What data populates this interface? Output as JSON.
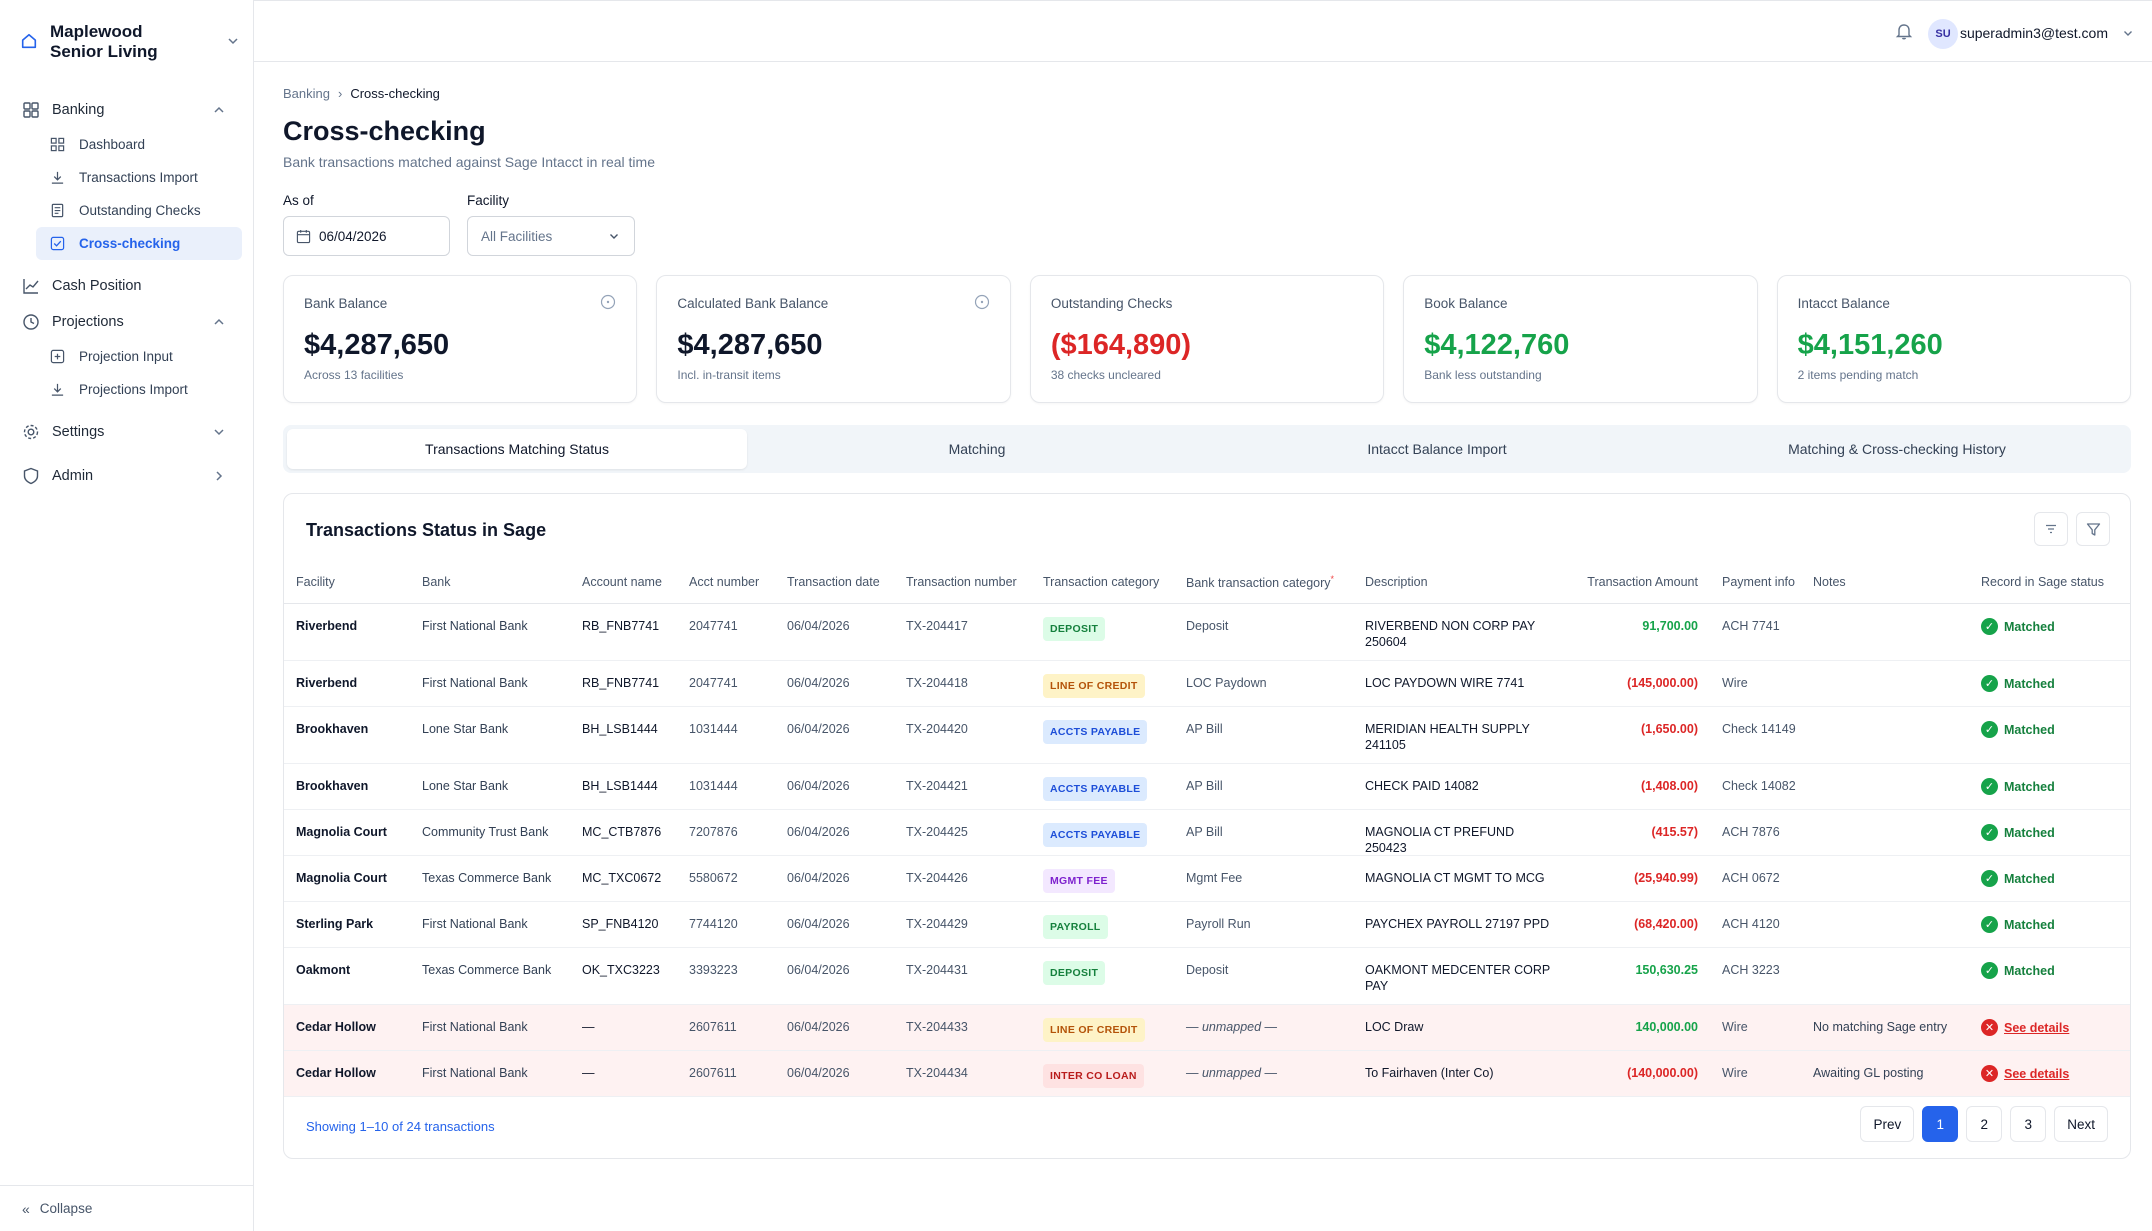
{
  "org": {
    "name": "Maplewood Senior Living"
  },
  "nav": {
    "banking": "Banking",
    "dashboard": "Dashboard",
    "transactions_import": "Transactions Import",
    "outstanding_checks": "Outstanding Checks",
    "cross_checking": "Cross-checking",
    "cash_position": "Cash Position",
    "projections": "Projections",
    "projection_input": "Projection Input",
    "projections_import": "Projections Import",
    "settings": "Settings",
    "admin": "Admin",
    "collapse": "Collapse"
  },
  "topbar": {
    "avatar": "SU",
    "user": "superadmin3@test.com"
  },
  "breadcrumb": {
    "parent": "Banking",
    "sep": "›",
    "current": "Cross-checking"
  },
  "page": {
    "title": "Cross-checking",
    "subtitle": "Bank transactions matched against Sage Intacct in real time"
  },
  "filters": {
    "as_of_label": "As of",
    "as_of_value": "06/04/2026",
    "facility_label": "Facility",
    "facility_value": "All Facilities"
  },
  "cards": [
    {
      "title": "Bank Balance",
      "value": "$4,287,650",
      "sub": "Across 13 facilities"
    },
    {
      "title": "Calculated Bank Balance",
      "value": "$4,287,650",
      "sub": "Incl. in-transit items"
    },
    {
      "title": "Outstanding Checks",
      "value": "($164,890)",
      "sub": "38 checks uncleared"
    },
    {
      "title": "Book Balance",
      "value": "$4,122,760",
      "sub": "Bank less outstanding"
    },
    {
      "title": "Intacct Balance",
      "value": "$4,151,260",
      "sub": "2 items pending match"
    }
  ],
  "tabs": [
    "Transactions Matching Status",
    "Matching",
    "Intacct Balance Import",
    "Matching & Cross-checking History"
  ],
  "table": {
    "title": "Transactions Status in Sage",
    "headers": {
      "facility": "Facility",
      "bank": "Bank",
      "account": "Account name",
      "acct_number": "Acct number",
      "date": "Transaction date",
      "txn": "Transaction number",
      "category": "Transaction category",
      "bank_category": "Bank transaction category",
      "bank_category_mark": "*",
      "description": "Description",
      "amount": "Transaction Amount",
      "payment": "Payment info",
      "notes": "Notes",
      "status": "Record in Sage status"
    },
    "rows": [
      {
        "facility": "Riverbend",
        "bank": "First National Bank",
        "account": "RB_FNB7741",
        "acct_number": "2047741",
        "date": "06/04/2026",
        "txn": "TX-204417",
        "category": "DEPOSIT",
        "bank_category": "Deposit",
        "description": "RIVERBEND NON CORP PAY 250604",
        "amount": "91,700.00",
        "payment": "ACH 7741",
        "notes": "",
        "status": "Matched"
      },
      {
        "facility": "Riverbend",
        "bank": "First National Bank",
        "account": "RB_FNB7741",
        "acct_number": "2047741",
        "date": "06/04/2026",
        "txn": "TX-204418",
        "category": "LINE OF CREDIT",
        "bank_category": "LOC Paydown",
        "description": "LOC PAYDOWN WIRE 7741",
        "amount": "(145,000.00)",
        "payment": "Wire",
        "notes": "",
        "status": "Matched"
      },
      {
        "facility": "Brookhaven",
        "bank": "Lone Star Bank",
        "account": "BH_LSB1444",
        "acct_number": "1031444",
        "date": "06/04/2026",
        "txn": "TX-204420",
        "category": "ACCTS PAYABLE",
        "bank_category": "AP Bill",
        "description": "MERIDIAN HEALTH SUPPLY 241105",
        "amount": "(1,650.00)",
        "payment": "Check 14149",
        "notes": "",
        "status": "Matched"
      },
      {
        "facility": "Brookhaven",
        "bank": "Lone Star Bank",
        "account": "BH_LSB1444",
        "acct_number": "1031444",
        "date": "06/04/2026",
        "txn": "TX-204421",
        "category": "ACCTS PAYABLE",
        "bank_category": "AP Bill",
        "description": "CHECK PAID 14082",
        "amount": "(1,408.00)",
        "payment": "Check 14082",
        "notes": "",
        "status": "Matched"
      },
      {
        "facility": "Magnolia Court",
        "bank": "Community Trust Bank",
        "account": "MC_CTB7876",
        "acct_number": "7207876",
        "date": "06/04/2026",
        "txn": "TX-204425",
        "category": "ACCTS PAYABLE",
        "bank_category": "AP Bill",
        "description": "MAGNOLIA CT PREFUND 250423",
        "amount": "(415.57)",
        "payment": "ACH 7876",
        "notes": "",
        "status": "Matched"
      },
      {
        "facility": "Magnolia Court",
        "bank": "Texas Commerce Bank",
        "account": "MC_TXC0672",
        "acct_number": "5580672",
        "date": "06/04/2026",
        "txn": "TX-204426",
        "category": "MGMT FEE",
        "bank_category": "Mgmt Fee",
        "description": "MAGNOLIA CT MGMT TO MCG",
        "amount": "(25,940.99)",
        "payment": "ACH 0672",
        "notes": "",
        "status": "Matched"
      },
      {
        "facility": "Sterling Park",
        "bank": "First National Bank",
        "account": "SP_FNB4120",
        "acct_number": "7744120",
        "date": "06/04/2026",
        "txn": "TX-204429",
        "category": "PAYROLL",
        "bank_category": "Payroll Run",
        "description": "PAYCHEX PAYROLL 27197 PPD",
        "amount": "(68,420.00)",
        "payment": "ACH 4120",
        "notes": "",
        "status": "Matched"
      },
      {
        "facility": "Oakmont",
        "bank": "Texas Commerce Bank",
        "account": "OK_TXC3223",
        "acct_number": "3393223",
        "date": "06/04/2026",
        "txn": "TX-204431",
        "category": "DEPOSIT",
        "bank_category": "Deposit",
        "description": "OAKMONT MEDCENTER CORP PAY",
        "amount": "150,630.25",
        "payment": "ACH 3223",
        "notes": "",
        "status": "Matched"
      },
      {
        "facility": "Cedar Hollow",
        "bank": "First National Bank",
        "account": "—",
        "acct_number": "2607611",
        "date": "06/04/2026",
        "txn": "TX-204433",
        "category": "LINE OF CREDIT",
        "bank_category": "— unmapped —",
        "description": "LOC Draw",
        "amount": "140,000.00",
        "payment": "Wire",
        "notes": "No matching Sage entry",
        "status": "See details"
      },
      {
        "facility": "Cedar Hollow",
        "bank": "First National Bank",
        "account": "—",
        "acct_number": "2607611",
        "date": "06/04/2026",
        "txn": "TX-204434",
        "category": "INTER CO LOAN",
        "bank_category": "— unmapped —",
        "description": "To Fairhaven (Inter Co)",
        "amount": "(140,000.00)",
        "payment": "Wire",
        "notes": "Awaiting GL posting",
        "status": "See details"
      }
    ],
    "showing": "Showing 1–10 of 24 transactions"
  },
  "pagination": {
    "prev": "Prev",
    "pages": [
      "1",
      "2",
      "3"
    ],
    "next": "Next"
  },
  "colors": {
    "accent": "#2563eb",
    "positive": "#16a34a",
    "negative": "#dc2626",
    "error_row": "#fef2f2"
  }
}
